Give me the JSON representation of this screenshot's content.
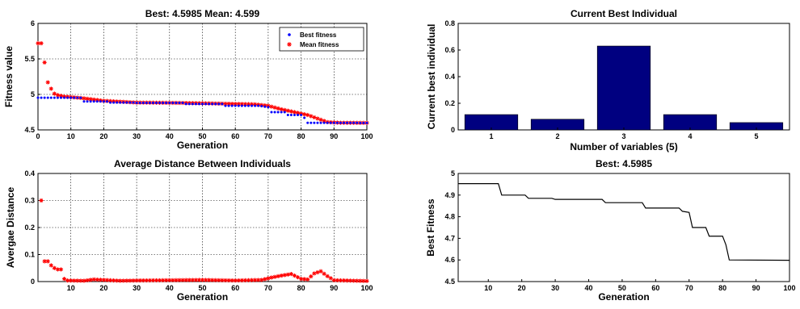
{
  "chart_data": [
    {
      "id": "fitness",
      "type": "scatter",
      "title": "Best: 4.5985 Mean: 4.599",
      "xlabel": "Generation",
      "ylabel": "Fitness value",
      "xlim": [
        0,
        100
      ],
      "ylim": [
        4.5,
        6
      ],
      "xticks": [
        0,
        10,
        20,
        30,
        40,
        50,
        60,
        70,
        80,
        90,
        100
      ],
      "yticks": [
        4.5,
        5,
        5.5,
        6
      ],
      "grid": true,
      "legend": "top-right",
      "series": [
        {
          "name": "Best fitness",
          "color": "#0000ff",
          "marker": "dot",
          "keypoints": [
            [
              1,
              4.953
            ],
            [
              13,
              4.953
            ],
            [
              14,
              4.9
            ],
            [
              21,
              4.9
            ],
            [
              22,
              4.885
            ],
            [
              29,
              4.885
            ],
            [
              30,
              4.88
            ],
            [
              44,
              4.88
            ],
            [
              45,
              4.865
            ],
            [
              56,
              4.865
            ],
            [
              57,
              4.84
            ],
            [
              67,
              4.84
            ],
            [
              70,
              4.82
            ],
            [
              71,
              4.75
            ],
            [
              75,
              4.75
            ],
            [
              76,
              4.71
            ],
            [
              80,
              4.71
            ],
            [
              81,
              4.67
            ],
            [
              82,
              4.6
            ],
            [
              100,
              4.5985
            ]
          ]
        },
        {
          "name": "Mean fitness",
          "color": "#ff0000",
          "marker": "star",
          "keypoints": [
            [
              1,
              5.72
            ],
            [
              2,
              5.45
            ],
            [
              3,
              5.17
            ],
            [
              4,
              5.08
            ],
            [
              5,
              5.01
            ],
            [
              6,
              4.99
            ],
            [
              8,
              4.97
            ],
            [
              13,
              4.95
            ],
            [
              20,
              4.91
            ],
            [
              30,
              4.885
            ],
            [
              44,
              4.88
            ],
            [
              56,
              4.87
            ],
            [
              66,
              4.86
            ],
            [
              70,
              4.84
            ],
            [
              74,
              4.79
            ],
            [
              78,
              4.75
            ],
            [
              82,
              4.71
            ],
            [
              85,
              4.66
            ],
            [
              88,
              4.61
            ],
            [
              92,
              4.6
            ],
            [
              100,
              4.599
            ]
          ]
        }
      ]
    },
    {
      "id": "bestind",
      "type": "bar",
      "title": "Current Best Individual",
      "xlabel": "Number of variables (5)",
      "ylabel": "Current best individual",
      "categories": [
        "1",
        "2",
        "3",
        "4",
        "5"
      ],
      "values": [
        0.115,
        0.08,
        0.63,
        0.115,
        0.055
      ],
      "ylim": [
        0,
        0.8
      ],
      "yticks": [
        0,
        0.2,
        0.4,
        0.6,
        0.8
      ],
      "grid": false,
      "color": "#000080"
    },
    {
      "id": "distance",
      "type": "scatter",
      "title": "Average Distance Between Individuals",
      "xlabel": "Generation",
      "ylabel": "Avergae Distance",
      "xlim": [
        0,
        100
      ],
      "ylim": [
        0,
        0.4
      ],
      "xticks": [
        10,
        20,
        30,
        40,
        50,
        60,
        70,
        80,
        90,
        100
      ],
      "yticks": [
        0,
        0.1,
        0.2,
        0.3,
        0.4
      ],
      "grid": true,
      "color": "#ff0000",
      "marker": "star",
      "keypoints": [
        [
          1,
          0.3
        ],
        [
          2,
          0.075
        ],
        [
          3,
          0.075
        ],
        [
          4,
          0.06
        ],
        [
          5,
          0.05
        ],
        [
          6,
          0.045
        ],
        [
          7,
          0.045
        ],
        [
          8,
          0.01
        ],
        [
          9,
          0.004
        ],
        [
          14,
          0.003
        ],
        [
          17,
          0.008
        ],
        [
          20,
          0.006
        ],
        [
          25,
          0.003
        ],
        [
          30,
          0.004
        ],
        [
          40,
          0.005
        ],
        [
          50,
          0.006
        ],
        [
          60,
          0.004
        ],
        [
          68,
          0.006
        ],
        [
          71,
          0.015
        ],
        [
          74,
          0.022
        ],
        [
          77,
          0.028
        ],
        [
          80,
          0.01
        ],
        [
          82,
          0.008
        ],
        [
          84,
          0.03
        ],
        [
          86,
          0.038
        ],
        [
          88,
          0.02
        ],
        [
          90,
          0.005
        ],
        [
          100,
          0.002
        ]
      ]
    },
    {
      "id": "bestfit",
      "type": "line",
      "title": "Best: 4.5985",
      "xlabel": "Generation",
      "ylabel": "Best Fitness",
      "xlim": [
        1,
        100
      ],
      "ylim": [
        4.5,
        5
      ],
      "xticks": [
        10,
        20,
        30,
        40,
        50,
        60,
        70,
        80,
        90,
        100
      ],
      "yticks": [
        4.5,
        4.6,
        4.7,
        4.8,
        4.9,
        5
      ],
      "grid": false,
      "color": "#000000",
      "points": [
        [
          1,
          4.953
        ],
        [
          13,
          4.953
        ],
        [
          14,
          4.9
        ],
        [
          21,
          4.9
        ],
        [
          22,
          4.885
        ],
        [
          29,
          4.885
        ],
        [
          30,
          4.88
        ],
        [
          44,
          4.88
        ],
        [
          45,
          4.865
        ],
        [
          56,
          4.865
        ],
        [
          57,
          4.84
        ],
        [
          67,
          4.84
        ],
        [
          68,
          4.825
        ],
        [
          70,
          4.82
        ],
        [
          71,
          4.75
        ],
        [
          75,
          4.75
        ],
        [
          76,
          4.71
        ],
        [
          80,
          4.71
        ],
        [
          81,
          4.67
        ],
        [
          82,
          4.6
        ],
        [
          100,
          4.5985
        ]
      ]
    }
  ]
}
